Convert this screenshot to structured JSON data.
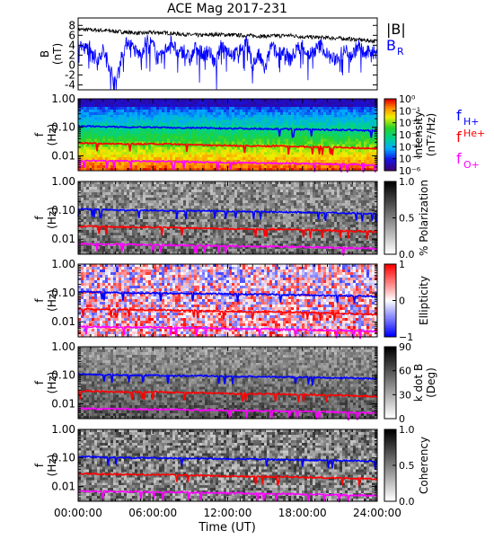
{
  "figure": {
    "title": "ACE Mag 2017-231",
    "xlabel": "Time (UT)",
    "xticks": [
      "00:00:00",
      "06:00:00",
      "12:00:00",
      "18:00:00",
      "24:00:00"
    ],
    "xlim_hours": [
      0,
      24
    ]
  },
  "chart_data": [
    {
      "type": "line",
      "name": "magnetic-field",
      "ylabel": "B",
      "yunit": "(nT)",
      "ylim": [
        -5,
        9.5
      ],
      "yticks": [
        "8",
        "6",
        "4",
        "2",
        "0",
        "-2",
        "-4"
      ],
      "legend": [
        {
          "label": "|B|",
          "color": "#000000"
        },
        {
          "label": "B",
          "sub": "R",
          "color": "#0000ff"
        }
      ],
      "series": [
        {
          "name": "|B|",
          "color": "#000000",
          "x": [
            0,
            1,
            2,
            3,
            4,
            5,
            6,
            7,
            8,
            9,
            10,
            11,
            12,
            13,
            14,
            15,
            16,
            17,
            18,
            19,
            20,
            21,
            22,
            23,
            24
          ],
          "y": [
            7.2,
            7.1,
            7.0,
            6.8,
            6.6,
            6.4,
            6.6,
            6.5,
            6.3,
            6.1,
            6.0,
            6.2,
            6.1,
            6.0,
            5.9,
            5.8,
            5.9,
            6.0,
            5.7,
            5.6,
            5.5,
            5.4,
            5.2,
            5.0,
            4.8
          ]
        },
        {
          "name": "B_R",
          "color": "#0000ff",
          "x": [
            0,
            0.5,
            1,
            1.5,
            2,
            2.5,
            3,
            3.5,
            4,
            4.5,
            5,
            5.5,
            6,
            6.5,
            7,
            7.5,
            8,
            8.5,
            9,
            9.5,
            10,
            10.5,
            11,
            11.5,
            12,
            12.5,
            13,
            13.5,
            14,
            14.5,
            15,
            15.5,
            16,
            16.5,
            17,
            17.5,
            18,
            18.5,
            19,
            19.5,
            20,
            20.5,
            21,
            21.5,
            22,
            22.5,
            23,
            23.5,
            24
          ],
          "y": [
            5,
            3,
            4,
            1,
            3,
            0,
            -4,
            2,
            5,
            3,
            2,
            5,
            4,
            1,
            3,
            5,
            2,
            3,
            1,
            4,
            2,
            3,
            0,
            4,
            3,
            2,
            3,
            5,
            0,
            2,
            -1,
            4,
            2,
            3,
            1,
            3,
            4,
            2,
            3,
            4,
            2,
            1,
            2,
            3,
            2,
            4,
            2,
            3,
            2
          ]
        }
      ]
    },
    {
      "type": "heatmap",
      "name": "intensity",
      "ylabel": "f",
      "yunit": "(Hz)",
      "yscale": "log",
      "ylim": [
        0.003,
        1.0
      ],
      "yticks": [
        "1.00",
        "0.10",
        "0.01"
      ],
      "colorbar": {
        "scale": "viridis-rainbow",
        "ticks": [
          "10⁰",
          "10⁻¹",
          "10⁻²",
          "10⁻³",
          "10⁻⁴",
          "10⁻⁵",
          "10⁻⁶"
        ],
        "label": "Intensity",
        "unit": "(nT²/Hz)"
      },
      "legend": [
        {
          "label": "f",
          "sub": "H+",
          "color": "#0000ff"
        },
        {
          "label": "f",
          "sub": "He+",
          "color": "#ff0000"
        },
        {
          "label": "f",
          "sub": "O+",
          "color": "#ff00ff"
        }
      ]
    },
    {
      "type": "heatmap",
      "name": "polarization",
      "ylabel": "f",
      "yunit": "(Hz)",
      "yscale": "log",
      "ylim": [
        0.003,
        1.0
      ],
      "yticks": [
        "1.00",
        "0.10",
        "0.01"
      ],
      "colorbar": {
        "scale": "gray",
        "ticks": [
          "1.0",
          "0.5",
          "0.0"
        ],
        "label": "% Polarization"
      }
    },
    {
      "type": "heatmap",
      "name": "ellipticity",
      "ylabel": "f",
      "yunit": "(Hz)",
      "yscale": "log",
      "ylim": [
        0.003,
        1.0
      ],
      "yticks": [
        "1.00",
        "0.10",
        "0.01"
      ],
      "colorbar": {
        "scale": "red-white-blue",
        "ticks": [
          "1",
          "0",
          "−1"
        ],
        "label": "Ellipticity"
      }
    },
    {
      "type": "heatmap",
      "name": "k-dot-b",
      "ylabel": "f",
      "yunit": "(Hz)",
      "yscale": "log",
      "ylim": [
        0.003,
        1.0
      ],
      "yticks": [
        "1.00",
        "0.10",
        "0.01"
      ],
      "colorbar": {
        "scale": "gray",
        "ticks": [
          "90",
          "60",
          "30",
          "0"
        ],
        "label": "k dot B",
        "unit": "(Deg)"
      }
    },
    {
      "type": "heatmap",
      "name": "coherency",
      "ylabel": "f",
      "yunit": "(Hz)",
      "yscale": "log",
      "ylim": [
        0.003,
        1.0
      ],
      "yticks": [
        "1.00",
        "0.10",
        "0.01"
      ],
      "colorbar": {
        "scale": "gray",
        "ticks": [
          "1.0",
          "0.5",
          "0.0"
        ],
        "label": "Coherency"
      }
    }
  ],
  "gyrofrequency_lines": {
    "x_hours": [
      0,
      2,
      4,
      6,
      8,
      10,
      12,
      14,
      16,
      18,
      20,
      22,
      24
    ],
    "H+": [
      0.11,
      0.105,
      0.1,
      0.1,
      0.095,
      0.095,
      0.092,
      0.09,
      0.088,
      0.085,
      0.082,
      0.08,
      0.075
    ],
    "He+": [
      0.028,
      0.027,
      0.026,
      0.026,
      0.025,
      0.024,
      0.023,
      0.022,
      0.022,
      0.021,
      0.02,
      0.019,
      0.018
    ],
    "O+": [
      0.0068,
      0.0066,
      0.0065,
      0.0064,
      0.0062,
      0.006,
      0.0058,
      0.0056,
      0.0055,
      0.0053,
      0.0051,
      0.0049,
      0.0047
    ]
  }
}
